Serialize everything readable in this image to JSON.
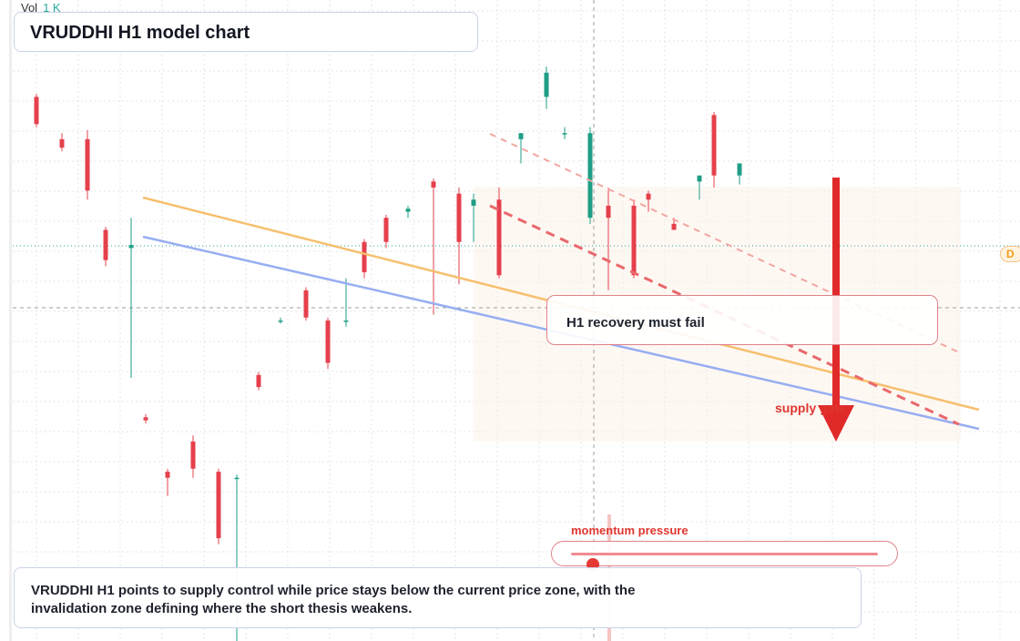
{
  "header": {
    "title": "VRUDDHI H1 model chart"
  },
  "volume": {
    "label": "Vol",
    "value": "1 K"
  },
  "callout": {
    "text": "H1 recovery must fail"
  },
  "supply_label": "supply gate",
  "momentum": {
    "label": "momentum pressure",
    "level": 0.07
  },
  "caption": {
    "text": "VRUDDHI H1 points to supply control while price stays below the current price zone, with the invalidation zone defining where the short thesis weakens."
  },
  "edge_tag": "D",
  "colors": {
    "up": "#1f9e86",
    "down": "#e5404c",
    "resistance": "#f6c06e",
    "support": "#97aef2",
    "trend": "#e9686c",
    "arrow": "#e02a2a"
  },
  "chart_data": {
    "type": "candlestick",
    "title": "VRUDDHI H1 model chart",
    "grid": true,
    "ylim": [
      0,
      100
    ],
    "candles": [
      {
        "x": 0,
        "o": 90,
        "h": 90.5,
        "l": 85,
        "c": 85.5
      },
      {
        "x": 4,
        "o": 83,
        "h": 84,
        "l": 81,
        "c": 81.6
      },
      {
        "x": 5,
        "o": 83,
        "h": 84.5,
        "l": 73,
        "c": 74.5
      },
      {
        "x": 4,
        "o": 68,
        "h": 68.5,
        "l": 62,
        "c": 63
      },
      {
        "x": 17,
        "o": 65,
        "h": 70,
        "l": 43.5,
        "c": 65.5
      },
      {
        "x": 12,
        "o": 37,
        "h": 37.5,
        "l": 36,
        "c": 36.5
      },
      {
        "x": 12,
        "o": 28,
        "h": 28.5,
        "l": 24,
        "c": 27
      },
      {
        "x": 13,
        "o": 33,
        "h": 34,
        "l": 27,
        "c": 28.5
      },
      {
        "x": 14,
        "o": 28,
        "h": 28.5,
        "l": 16,
        "c": 17
      },
      {
        "x": 16,
        "o": 27,
        "h": 27.5,
        "l": 0,
        "c": 27
      },
      {
        "x": 19,
        "o": 44,
        "h": 44.5,
        "l": 41.5,
        "c": 42
      },
      {
        "x": 22,
        "o": 53,
        "h": 53.5,
        "l": 52.5,
        "c": 53
      },
      {
        "x": 23,
        "o": 58,
        "h": 58.5,
        "l": 53,
        "c": 53.5
      },
      {
        "x": 23,
        "o": 53,
        "h": 53.5,
        "l": 45,
        "c": 46
      },
      {
        "x": 25,
        "o": 53,
        "h": 60,
        "l": 52,
        "c": 53
      },
      {
        "x": 24,
        "o": 66,
        "h": 66.5,
        "l": 60,
        "c": 61
      },
      {
        "x": 27,
        "o": 70,
        "h": 70.5,
        "l": 65,
        "c": 66
      },
      {
        "x": 27,
        "o": 71,
        "h": 72,
        "l": 70,
        "c": 71.5
      },
      {
        "x": 28,
        "o": 76,
        "h": 76.5,
        "l": 54,
        "c": 75
      },
      {
        "x": 29,
        "o": 74,
        "h": 75,
        "l": 59,
        "c": 66
      },
      {
        "x": 30,
        "o": 72,
        "h": 74,
        "l": 66,
        "c": 73
      },
      {
        "x": 31,
        "o": 73,
        "h": 75,
        "l": 60,
        "c": 60.5
      },
      {
        "x": 31,
        "o": 83,
        "h": 84,
        "l": 79,
        "c": 84
      },
      {
        "x": 32,
        "o": 90,
        "h": 95,
        "l": 88,
        "c": 94
      },
      {
        "x": 34,
        "o": 84,
        "h": 85,
        "l": 83,
        "c": 84
      },
      {
        "x": 35,
        "o": 70,
        "h": 85,
        "l": 69,
        "c": 84
      },
      {
        "x": 37,
        "o": 72,
        "h": 75,
        "l": 58,
        "c": 70
      },
      {
        "x": 38,
        "o": 72,
        "h": 73,
        "l": 60,
        "c": 60.5
      },
      {
        "x": 39,
        "o": 74,
        "h": 74.5,
        "l": 71,
        "c": 73
      },
      {
        "x": 40,
        "o": 69,
        "h": 70,
        "l": 68.5,
        "c": 68
      },
      {
        "x": 41,
        "o": 76,
        "h": 76.5,
        "l": 73,
        "c": 77
      },
      {
        "x": 42,
        "o": 87,
        "h": 87.5,
        "l": 75,
        "c": 77
      },
      {
        "x": 43,
        "o": 77,
        "h": 78,
        "l": 75.5,
        "c": 79
      }
    ]
  }
}
